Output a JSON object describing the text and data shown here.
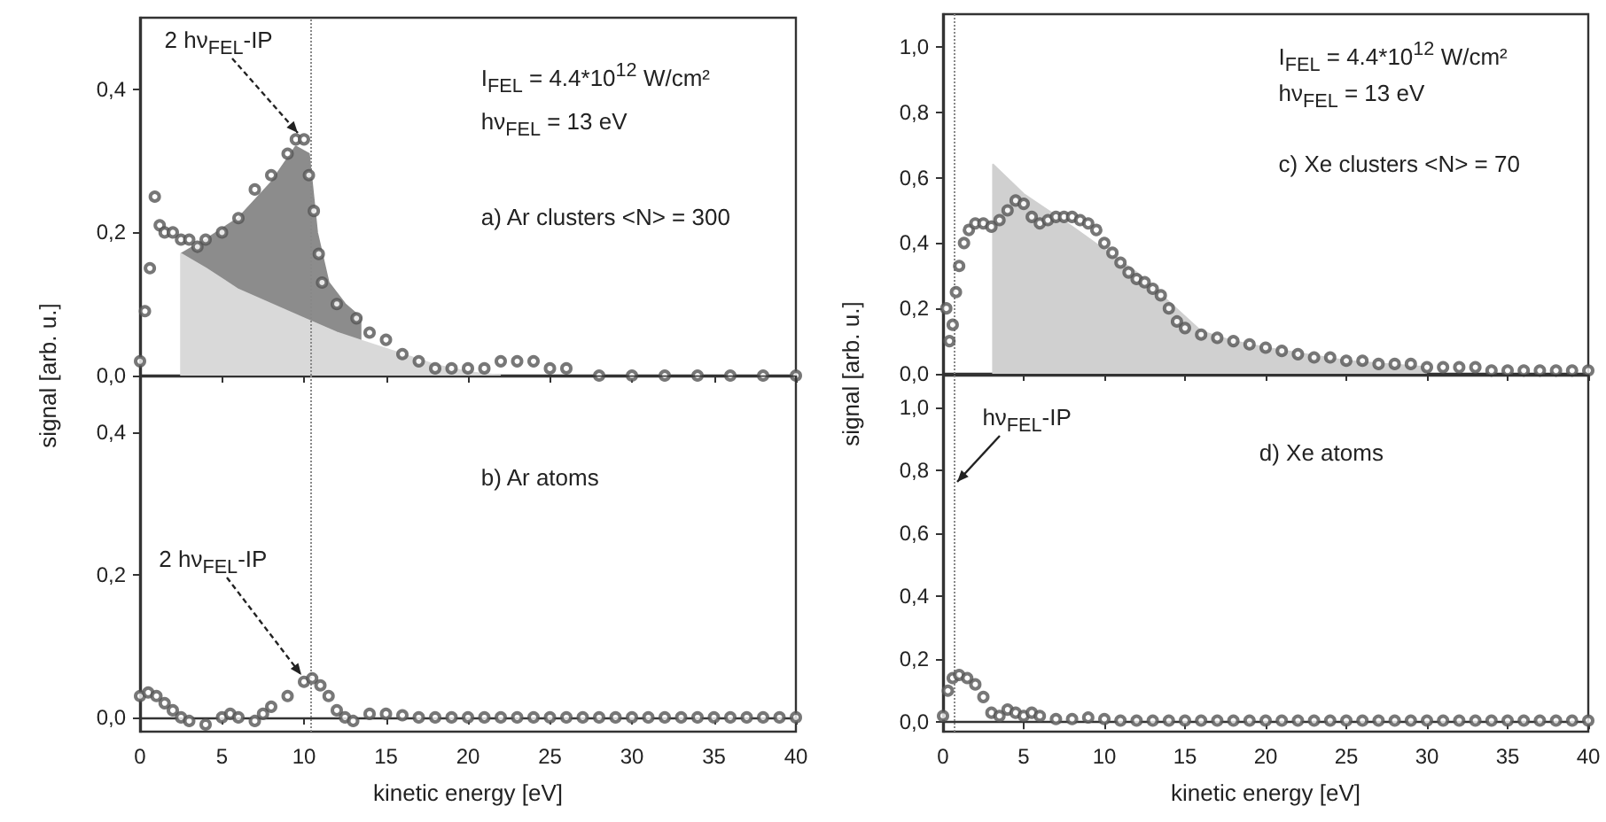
{
  "chart_data": [
    {
      "type": "scatter",
      "ylabel": "signal [arb. u.]",
      "xlim": [
        0,
        40
      ],
      "ylim": [
        0,
        0.5
      ],
      "xticks": [
        0,
        5,
        10,
        15,
        20,
        25,
        30,
        35,
        40
      ],
      "yticks": [
        {
          "value": 0,
          "label": "0,0"
        },
        {
          "value": 0.2,
          "label": "0,2"
        },
        {
          "value": 0.4,
          "label": "0,4"
        }
      ],
      "tick_labels": "y",
      "marker": "circle",
      "series": [
        {
          "type": "area",
          "marker": "none",
          "color": "#8c8c8c",
          "x": [
            2.5,
            4,
            6,
            8,
            9.5,
            10.3,
            10.8,
            11.5,
            12.5,
            13.5
          ],
          "values": [
            0.17,
            0.19,
            0.22,
            0.27,
            0.32,
            0.31,
            0.2,
            0.13,
            0.1,
            0.08
          ]
        },
        {
          "type": "area",
          "marker": "none",
          "color": "#d9d9d9",
          "x": [
            2.5,
            2.5,
            4,
            6,
            8,
            10,
            12,
            14,
            16,
            18,
            20,
            22
          ],
          "values": [
            0,
            0.17,
            0.15,
            0.12,
            0.1,
            0.08,
            0.06,
            0.045,
            0.03,
            0.015,
            0.005,
            0
          ]
        },
        {
          "color": "#555555",
          "x": [
            0,
            0.3,
            0.6,
            0.9,
            1.2,
            1.5,
            2,
            2.5,
            3,
            3.5,
            4,
            5,
            6,
            7,
            8,
            9,
            9.5,
            10,
            10.3,
            10.6,
            10.9,
            11.1,
            12,
            13.2,
            14,
            15,
            16,
            17,
            18,
            19,
            20,
            21,
            22,
            23,
            24,
            25,
            26,
            28,
            30,
            32,
            34,
            36,
            38,
            40
          ],
          "values": [
            0.02,
            0.09,
            0.15,
            0.25,
            0.21,
            0.2,
            0.2,
            0.19,
            0.19,
            0.18,
            0.19,
            0.2,
            0.22,
            0.26,
            0.28,
            0.31,
            0.33,
            0.33,
            0.28,
            0.23,
            0.17,
            0.13,
            0.1,
            0.08,
            0.06,
            0.05,
            0.03,
            0.02,
            0.01,
            0.01,
            0.01,
            0.01,
            0.02,
            0.02,
            0.02,
            0.01,
            0.01,
            0,
            0,
            0,
            0,
            0,
            0,
            0
          ]
        }
      ],
      "ref_lines": [
        {
          "axis": "x",
          "value": 10.4,
          "color": "#888888",
          "line_style": "dotted"
        }
      ],
      "annotations": [
        {
          "text": "2 hν$_{FEL}$-IP",
          "x": 9.6,
          "y": 0.34
        },
        "I$_{FEL}$  = 4.4*10$^{12}$ W/cm²",
        "hν$_{FEL}$ = 13 eV",
        "a) Ar clusters <N> = 300"
      ]
    },
    {
      "type": "scatter",
      "xlabel": "kinetic energy [eV]",
      "xlim": [
        0,
        40
      ],
      "ylim": [
        -0.02,
        0.48
      ],
      "xticks": [
        0,
        5,
        10,
        15,
        20,
        25,
        30,
        35,
        40
      ],
      "yticks": [
        {
          "value": 0,
          "label": "0,0"
        },
        {
          "value": 0.2,
          "label": "0,2"
        },
        {
          "value": 0.4,
          "label": "0,4"
        }
      ],
      "marker": "circle",
      "series": [
        {
          "color": "#555555",
          "x": [
            0,
            0.5,
            1,
            1.5,
            2,
            2.5,
            3,
            4,
            5,
            5.5,
            6,
            7,
            7.5,
            8,
            9,
            10,
            10.5,
            11,
            11.5,
            12,
            12.5,
            13,
            14,
            15,
            16,
            17,
            18,
            19,
            20,
            21,
            22,
            23,
            24,
            25,
            26,
            27,
            28,
            29,
            30,
            31,
            32,
            33,
            34,
            35,
            36,
            37,
            38,
            39,
            40
          ],
          "values": [
            0.03,
            0.035,
            0.03,
            0.02,
            0.01,
            0,
            -0.005,
            -0.01,
            0,
            0.005,
            0,
            -0.005,
            0.005,
            0.015,
            0.03,
            0.05,
            0.055,
            0.045,
            0.03,
            0.01,
            0,
            -0.005,
            0.005,
            0.005,
            0.003,
            0,
            0,
            0,
            0,
            0,
            0,
            0,
            0,
            0,
            0,
            0,
            0,
            0,
            0,
            0,
            0,
            0,
            0,
            0,
            0,
            0,
            0,
            0,
            0
          ]
        }
      ],
      "ref_lines": [
        {
          "axis": "x",
          "value": 10.4,
          "color": "#888888",
          "line_style": "dotted"
        }
      ],
      "annotations": [
        {
          "text": "2 hν$_{FEL}$-IP",
          "x": 9.8,
          "y": 0.06
        },
        "b) Ar atoms"
      ]
    },
    {
      "type": "scatter",
      "ylabel": "signal [arb. u.]",
      "xlim": [
        0,
        40
      ],
      "ylim": [
        0,
        1.1
      ],
      "xticks": [
        0,
        5,
        10,
        15,
        20,
        25,
        30,
        35,
        40
      ],
      "yticks": [
        {
          "value": 0,
          "label": "0,0"
        },
        {
          "value": 0.2,
          "label": "0,2"
        },
        {
          "value": 0.4,
          "label": "0,4"
        },
        {
          "value": 0.6,
          "label": "0,6"
        },
        {
          "value": 0.8,
          "label": "0,8"
        },
        {
          "value": 1,
          "label": "1,0"
        }
      ],
      "tick_labels": "y",
      "marker": "circle",
      "series": [
        {
          "type": "area",
          "marker": "none",
          "color": "#d0d0d0",
          "x": [
            3.1,
            3.1,
            5,
            8,
            10,
            12,
            14,
            16,
            18,
            20,
            25,
            30
          ],
          "values": [
            0,
            0.64,
            0.55,
            0.45,
            0.38,
            0.31,
            0.22,
            0.13,
            0.1,
            0.08,
            0.04,
            0.02
          ]
        },
        {
          "color": "#555555",
          "x": [
            0.2,
            0.4,
            0.6,
            0.8,
            1,
            1.3,
            1.6,
            2,
            2.5,
            3,
            3.5,
            4,
            4.5,
            5,
            5.5,
            6,
            6.5,
            7,
            7.5,
            8,
            8.5,
            9,
            9.5,
            10,
            10.5,
            11,
            11.5,
            12,
            12.5,
            13,
            13.5,
            14,
            14.5,
            15,
            16,
            17,
            18,
            19,
            20,
            21,
            22,
            23,
            24,
            25,
            26,
            27,
            28,
            29,
            30,
            31,
            32,
            33,
            34,
            35,
            36,
            37,
            38,
            39,
            40
          ],
          "values": [
            0.2,
            0.1,
            0.15,
            0.25,
            0.33,
            0.4,
            0.44,
            0.46,
            0.46,
            0.45,
            0.47,
            0.5,
            0.53,
            0.52,
            0.48,
            0.46,
            0.47,
            0.48,
            0.48,
            0.48,
            0.47,
            0.46,
            0.44,
            0.4,
            0.37,
            0.34,
            0.31,
            0.29,
            0.28,
            0.26,
            0.24,
            0.2,
            0.16,
            0.14,
            0.12,
            0.11,
            0.1,
            0.09,
            0.08,
            0.07,
            0.06,
            0.05,
            0.05,
            0.04,
            0.04,
            0.03,
            0.03,
            0.03,
            0.02,
            0.02,
            0.02,
            0.02,
            0.01,
            0.01,
            0.01,
            0.01,
            0.01,
            0.01,
            0.01
          ]
        }
      ],
      "ref_lines": [
        {
          "axis": "x",
          "value": 0.7,
          "color": "#888888",
          "line_style": "dotted"
        }
      ],
      "annotations": [
        "I$_{FEL}$  = 4.4*10$^{12}$ W/cm²",
        "hν$_{FEL}$ = 13 eV",
        "c) Xe clusters <N> = 70"
      ]
    },
    {
      "type": "scatter",
      "xlabel": "kinetic energy [eV]",
      "xlim": [
        0,
        40
      ],
      "ylim": [
        -0.03,
        1.1
      ],
      "xticks": [
        0,
        5,
        10,
        15,
        20,
        25,
        30,
        35,
        40
      ],
      "yticks": [
        {
          "value": 0,
          "label": "0,0"
        },
        {
          "value": 0.2,
          "label": "0,2"
        },
        {
          "value": 0.4,
          "label": "0,4"
        },
        {
          "value": 0.6,
          "label": "0,6"
        },
        {
          "value": 0.8,
          "label": "0,8"
        },
        {
          "value": 1,
          "label": "1,0"
        }
      ],
      "marker": "circle",
      "series": [
        {
          "color": "#555555",
          "x": [
            0,
            0.3,
            0.6,
            1,
            1.5,
            2,
            2.5,
            3,
            3.5,
            4,
            4.5,
            5,
            5.5,
            6,
            7,
            8,
            9,
            10,
            11,
            12,
            13,
            14,
            15,
            16,
            17,
            18,
            19,
            20,
            21,
            22,
            23,
            24,
            25,
            26,
            27,
            28,
            29,
            30,
            31,
            32,
            33,
            34,
            35,
            36,
            37,
            38,
            39,
            40
          ],
          "values": [
            0.02,
            0.1,
            0.14,
            0.15,
            0.14,
            0.12,
            0.08,
            0.03,
            0.02,
            0.04,
            0.03,
            0.02,
            0.03,
            0.02,
            0.01,
            0.01,
            0.015,
            0.01,
            0.005,
            0.005,
            0.005,
            0.005,
            0.005,
            0.005,
            0.005,
            0.005,
            0.005,
            0.005,
            0.005,
            0.005,
            0.005,
            0.005,
            0.005,
            0.005,
            0.005,
            0.005,
            0.005,
            0.005,
            0.005,
            0.005,
            0.005,
            0.005,
            0.005,
            0.005,
            0.005,
            0.005,
            0.005,
            0.005
          ]
        }
      ],
      "ref_lines": [
        {
          "axis": "x",
          "value": 0.7,
          "color": "#888888",
          "line_style": "dotted"
        }
      ],
      "annotations": [
        {
          "text": "hν$_{FEL}$-IP",
          "x": 0.9,
          "y": 0.76
        },
        "d) Xe atoms"
      ]
    }
  ]
}
